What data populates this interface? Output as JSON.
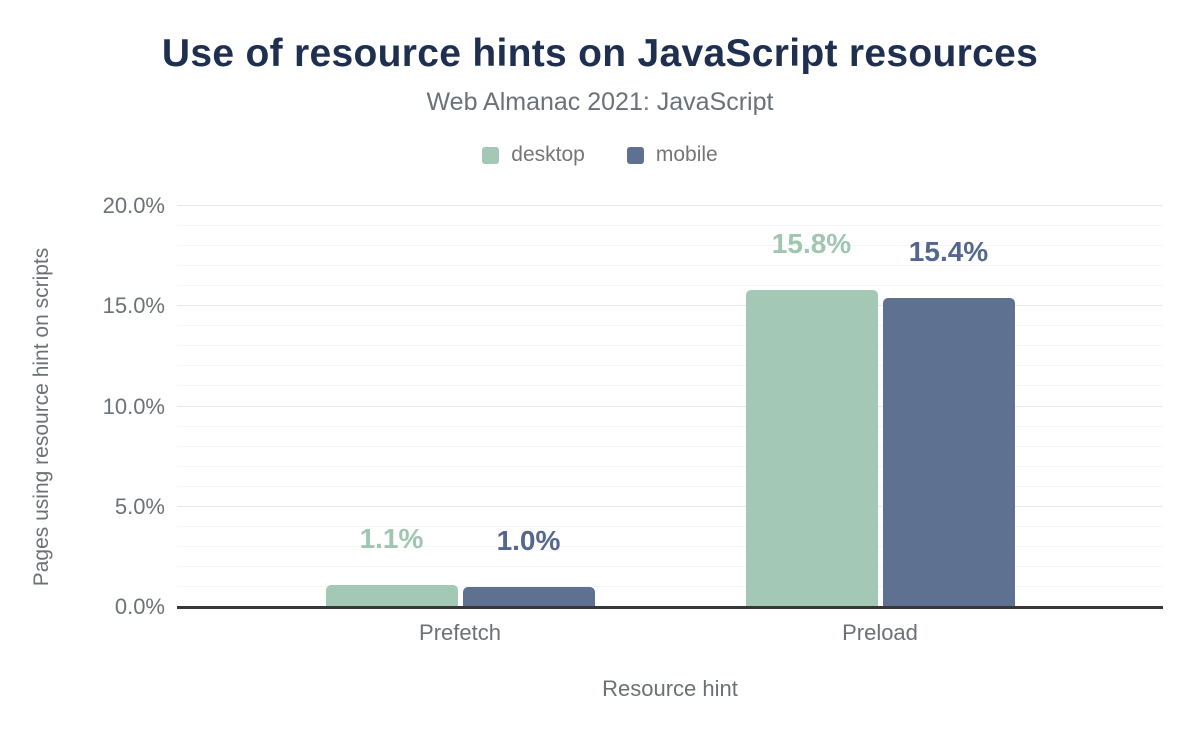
{
  "title": "Use of resource hints on JavaScript resources",
  "subtitle": "Web Almanac 2021: JavaScript",
  "colors": {
    "title": "#1e2f4f",
    "subtitle": "#6a7178",
    "axis_text": "#6c7177",
    "legend_text": "#757575",
    "axis_line": "#373737",
    "grid_major": "#e8e8e8",
    "grid_minor": "#f5f5f5",
    "desktop": "#a3c8b5",
    "mobile": "#5e7190"
  },
  "chart_data": {
    "type": "bar",
    "title": "Use of resource hints on JavaScript resources",
    "subtitle": "Web Almanac 2021: JavaScript",
    "categories": [
      "Prefetch",
      "Preload"
    ],
    "series": [
      {
        "name": "desktop",
        "values": [
          1.1,
          15.8
        ],
        "labels": [
          "1.1%",
          "15.8%"
        ],
        "color": "#a3c8b5",
        "label_color": "#a0c6b2"
      },
      {
        "name": "mobile",
        "values": [
          1.0,
          15.4
        ],
        "labels": [
          "1.0%",
          "15.4%"
        ],
        "color": "#5e7190",
        "label_color": "#54678f"
      }
    ],
    "xlabel": "Resource hint",
    "ylabel": "Pages using resource hint on scripts",
    "ylim": [
      0,
      20
    ],
    "yticks": [
      {
        "value": 0,
        "label": "0.0%"
      },
      {
        "value": 5,
        "label": "5.0%"
      },
      {
        "value": 10,
        "label": "10.0%"
      },
      {
        "value": 15,
        "label": "15.0%"
      },
      {
        "value": 20,
        "label": "20.0%"
      }
    ],
    "minor_grid_step": 1,
    "grid": true,
    "legend_position": "top"
  }
}
